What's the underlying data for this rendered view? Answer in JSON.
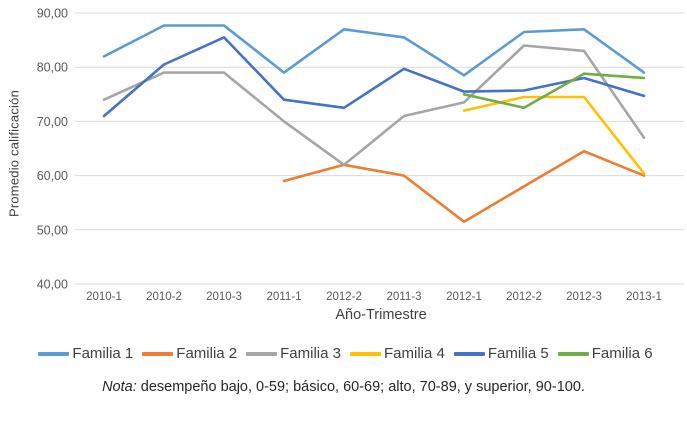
{
  "chart_data": {
    "type": "line",
    "title": "",
    "xlabel": "Año-Trimestre",
    "ylabel": "Promedio calificación",
    "ylim": [
      40,
      90
    ],
    "grid": true,
    "legend_position": "bottom",
    "gridline_color": "#D9D9D9",
    "tick_color": "#595959",
    "y_ticks": [
      {
        "value": 90,
        "label": "90,00"
      },
      {
        "value": 80,
        "label": "80,00"
      },
      {
        "value": 70,
        "label": "70,00"
      },
      {
        "value": 60,
        "label": "60,00"
      },
      {
        "value": 50,
        "label": "50,00"
      },
      {
        "value": 40,
        "label": "40,00"
      }
    ],
    "categories": [
      "2010-1",
      "2010-2",
      "2010-3",
      "2011-1",
      "2012-2",
      "2011-3",
      "2012-1",
      "2012-2",
      "2012-3",
      "2013-1"
    ],
    "series": [
      {
        "name": "Familia 1",
        "color": "#5B9BD5",
        "values": [
          82,
          87.7,
          87.7,
          79,
          87,
          85.5,
          78.5,
          86.5,
          87,
          79
        ]
      },
      {
        "name": "Familia 2",
        "color": "#ED7D31",
        "values": [
          null,
          null,
          null,
          59,
          62,
          60,
          51.5,
          58,
          64.5,
          60
        ]
      },
      {
        "name": "Familia 3",
        "color": "#A5A5A5",
        "values": [
          74,
          79,
          79,
          70,
          62,
          71,
          73.5,
          84,
          83,
          67
        ]
      },
      {
        "name": "Familia 4",
        "color": "#FFC000",
        "values": [
          null,
          null,
          null,
          null,
          null,
          null,
          72,
          74.5,
          74.5,
          60.4
        ]
      },
      {
        "name": "Familia 5",
        "color": "#4472C4",
        "values": [
          71,
          80.5,
          85.5,
          74,
          72.5,
          79.7,
          75.5,
          75.7,
          78,
          74.7
        ]
      },
      {
        "name": "Familia 6",
        "color": "#70AD47",
        "values": [
          null,
          null,
          null,
          null,
          null,
          null,
          75,
          72.5,
          78.8,
          78
        ]
      }
    ]
  },
  "note": {
    "prefix": "Nota:",
    "text": " desempeño bajo, 0-59; básico, 60-69; alto, 70-89, y superior, 90-100."
  }
}
